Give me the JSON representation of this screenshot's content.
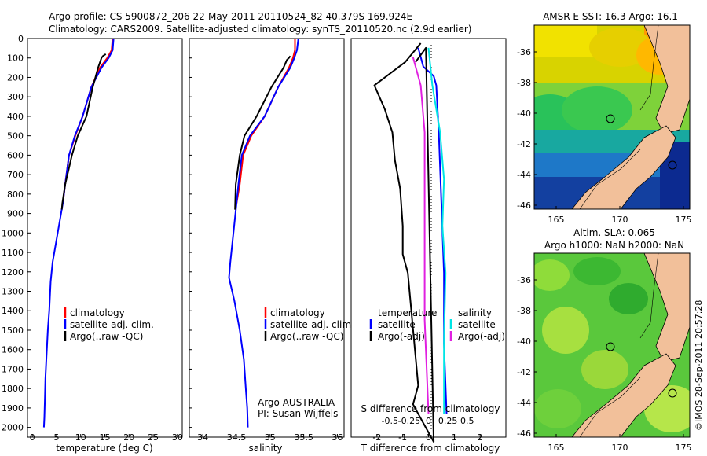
{
  "header": {
    "line1": "Argo profile: CS 5900872_206 22-May-2011 20110524_82 40.379S 169.924E",
    "line2": "Climatology: CARS2009. Satellite-adjusted climatology: synTS_20110520.nc (2.9d earlier)"
  },
  "colors": {
    "climatology": "#ff0000",
    "satellite": "#0000ff",
    "argo": "#000000",
    "sal_satellite": "#00e5e5",
    "sal_argo": "#e020e0"
  },
  "chart_data": [
    {
      "id": "temperature",
      "type": "line",
      "xlabel": "temperature (deg C)",
      "xlim": [
        -1,
        31
      ],
      "xticks": [
        0,
        5,
        10,
        15,
        20,
        25,
        30
      ],
      "ylim": [
        2050,
        0
      ],
      "yticks": [
        0,
        100,
        200,
        300,
        400,
        500,
        600,
        700,
        800,
        900,
        1000,
        1100,
        1200,
        1300,
        1400,
        1500,
        1600,
        1700,
        1800,
        1900,
        2000
      ],
      "legend": [
        "climatology",
        "satellite-adj. clim.",
        "Argo(..raw -QC)"
      ],
      "series": [
        {
          "name": "climatology",
          "color": "#ff0000",
          "x": [
            16.6,
            16.4,
            15.5,
            14,
            12.2,
            10.4,
            8.9,
            7.6,
            6.8,
            6.3
          ],
          "y": [
            0,
            60,
            100,
            150,
            250,
            400,
            500,
            600,
            750,
            850
          ]
        },
        {
          "name": "satellite-adj. clim.",
          "color": "#0000ff",
          "x": [
            16.8,
            16.6,
            15.8,
            14.3,
            12.2,
            10.4,
            8.8,
            7.6,
            6.8,
            6.3,
            5.6,
            4.9,
            4.2,
            3.8,
            3.5,
            3.2,
            2.9,
            2.7,
            2.6,
            2.5,
            2.4
          ],
          "y": [
            0,
            60,
            100,
            150,
            250,
            400,
            500,
            600,
            750,
            850,
            950,
            1050,
            1150,
            1250,
            1400,
            1500,
            1650,
            1750,
            1850,
            1950,
            2000
          ]
        },
        {
          "name": "Argo(..raw -QC)",
          "color": "#000000",
          "x": [
            15.2,
            14.6,
            14.3,
            13.6,
            12.5,
            11.2,
            9.4,
            8.2,
            6.8,
            6.2,
            6.1
          ],
          "y": [
            80,
            90,
            100,
            150,
            250,
            400,
            500,
            600,
            750,
            850,
            880
          ]
        }
      ]
    },
    {
      "id": "salinity",
      "type": "line",
      "xlabel": "salinity",
      "xlim": [
        33.8,
        36.1
      ],
      "xticks": [
        34,
        34.5,
        35,
        35.5,
        36
      ],
      "ylim": [
        2050,
        0
      ],
      "legend": [
        "climatology",
        "satellite-adj. clim.",
        "Argo(..raw -QC)"
      ],
      "annotation": [
        "Argo AUSTRALIA",
        "PI: Susan Wijffels"
      ],
      "series": [
        {
          "name": "climatology",
          "color": "#ff0000",
          "x": [
            35.37,
            35.37,
            35.34,
            35.28,
            35.12,
            34.92,
            34.72,
            34.6,
            34.55,
            34.5
          ],
          "y": [
            0,
            60,
            100,
            150,
            250,
            400,
            500,
            600,
            750,
            850
          ]
        },
        {
          "name": "satellite-adj. clim.",
          "color": "#0000ff",
          "x": [
            35.42,
            35.4,
            35.36,
            35.3,
            35.12,
            34.92,
            34.7,
            34.58,
            34.53,
            34.5,
            34.47,
            34.44,
            34.41,
            34.39,
            34.47,
            34.55,
            34.61,
            34.64,
            34.66,
            34.67
          ],
          "y": [
            0,
            60,
            100,
            150,
            250,
            400,
            500,
            600,
            750,
            850,
            950,
            1050,
            1150,
            1230,
            1350,
            1500,
            1650,
            1800,
            1900,
            2000
          ]
        },
        {
          "name": "Argo(..raw -QC)",
          "color": "#000000",
          "x": [
            35.3,
            35.28,
            35.25,
            35.2,
            35.02,
            34.8,
            34.62,
            34.55,
            34.49,
            34.48
          ],
          "y": [
            90,
            100,
            110,
            150,
            250,
            400,
            500,
            600,
            750,
            880
          ]
        }
      ]
    },
    {
      "id": "difference",
      "type": "line",
      "xlabel": "T difference from climatology",
      "xlabel_top": "S difference from climatology",
      "xlim": [
        -3,
        3
      ],
      "xticks": [
        -2,
        -1,
        0,
        1,
        2
      ],
      "xticks_top": [
        -0.5,
        -0.25,
        0,
        0.25,
        0.5
      ],
      "ylim": [
        850,
        0
      ],
      "legend_left": [
        "temperature",
        "satellite",
        "Argo(-adj)"
      ],
      "legend_right": [
        "salinity",
        "satellite",
        "Argo(-adj)"
      ],
      "series": [
        {
          "name": "temperature satellite",
          "color": "#0000ff",
          "x": [
            -0.4,
            -0.2,
            0.2,
            0.3,
            0.4,
            0.5,
            0.6,
            0.6,
            0.7
          ],
          "y": [
            20,
            60,
            80,
            100,
            200,
            350,
            500,
            650,
            800
          ]
        },
        {
          "name": "temperature Argo(-adj)",
          "color": "#000000",
          "x": [
            -0.3,
            -0.9,
            -2.1,
            -1.7,
            -1.4,
            -1.3,
            -1.1,
            -1.0,
            -1.0,
            -0.8,
            -0.7,
            -0.6,
            -0.5,
            -0.4,
            -0.6,
            -0.2,
            0.2,
            -0.1,
            -0.5
          ],
          "y": [
            10,
            50,
            100,
            150,
            200,
            260,
            320,
            400,
            460,
            500,
            560,
            620,
            680,
            740,
            780,
            820,
            860,
            20,
            50
          ]
        },
        {
          "name": "salinity satellite",
          "color": "#00e5e5",
          "x": [
            0.0,
            0.05,
            0.15,
            0.2,
            0.18,
            0.22,
            0.2,
            0.2
          ],
          "y": [
            20,
            100,
            200,
            300,
            400,
            500,
            650,
            800
          ]
        },
        {
          "name": "salinity Argo(-adj)",
          "color": "#e020e0",
          "x": [
            -0.2,
            -0.1,
            -0.05,
            -0.05,
            -0.05,
            -0.05,
            0.0
          ],
          "y": [
            40,
            100,
            200,
            300,
            450,
            600,
            800
          ]
        }
      ]
    }
  ],
  "maps": [
    {
      "title": "AMSR-E SST: 16.3 Argo: 16.1",
      "xticks": [
        "165",
        "170",
        "175"
      ],
      "yticks": [
        "-36",
        "-38",
        "-40",
        "-42",
        "-44",
        "-46"
      ]
    },
    {
      "title": "Altim. SLA: 0.065",
      "subtitle": "Argo h1000: NaN h2000: NaN",
      "xticks": [
        "165",
        "170",
        "175"
      ],
      "yticks": [
        "-36",
        "-38",
        "-40",
        "-42",
        "-44",
        "-46"
      ]
    }
  ],
  "credit": "©IMOS 28-Sep-2011 20:57:28"
}
